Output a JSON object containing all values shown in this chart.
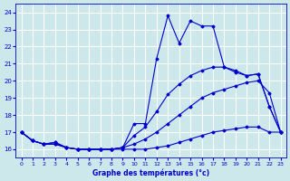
{
  "bg_color": "#cce8ea",
  "grid_color": "#b0d8dc",
  "line_color": "#0000cc",
  "xlabel": "Graphe des températures (°c)",
  "ylabel_ticks": [
    16,
    17,
    18,
    19,
    20,
    21,
    22,
    23,
    24
  ],
  "xlim": [
    -0.5,
    23.5
  ],
  "ylim": [
    15.5,
    24.5
  ],
  "xticks": [
    0,
    1,
    2,
    3,
    4,
    5,
    6,
    7,
    8,
    9,
    10,
    11,
    12,
    13,
    14,
    15,
    16,
    17,
    18,
    19,
    20,
    21,
    22,
    23
  ],
  "temp": [
    17.0,
    16.5,
    16.3,
    16.4,
    16.1,
    16.0,
    16.0,
    16.0,
    16.0,
    16.1,
    17.5,
    17.5,
    21.3,
    23.8,
    22.2,
    23.5,
    23.2,
    23.2,
    20.8,
    20.6,
    20.3,
    20.4,
    18.5,
    17.0
  ],
  "tmin": [
    17.0,
    16.5,
    16.3,
    16.3,
    16.1,
    16.0,
    16.0,
    16.0,
    16.0,
    16.0,
    16.0,
    16.0,
    16.1,
    16.2,
    16.4,
    16.6,
    16.8,
    17.0,
    17.1,
    17.2,
    17.3,
    17.3,
    17.0,
    17.0
  ],
  "tmean": [
    17.0,
    16.5,
    16.3,
    16.3,
    16.1,
    16.0,
    16.0,
    16.0,
    16.0,
    16.1,
    16.3,
    16.6,
    17.0,
    17.5,
    18.0,
    18.5,
    19.0,
    19.3,
    19.5,
    19.7,
    19.9,
    20.0,
    19.3,
    17.0
  ],
  "tmax": [
    17.0,
    16.5,
    16.3,
    16.4,
    16.1,
    16.0,
    16.0,
    16.0,
    16.0,
    16.1,
    16.8,
    17.3,
    18.2,
    19.2,
    19.8,
    20.3,
    20.6,
    20.8,
    20.8,
    20.5,
    20.3,
    20.4,
    18.5,
    17.0
  ]
}
